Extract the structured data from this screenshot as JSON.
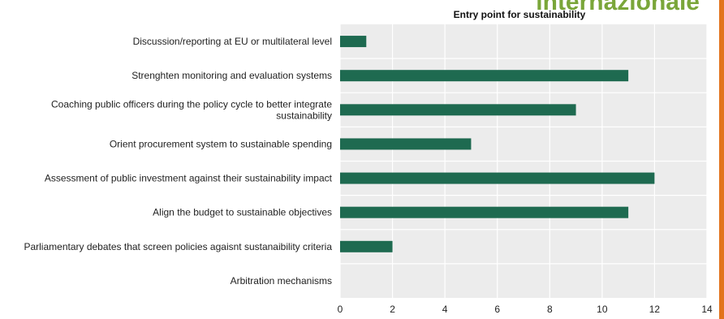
{
  "watermark_text": "internazionale",
  "colors": {
    "bar": "#1e6a50",
    "plot_bg": "#ececec",
    "grid": "#ffffff",
    "edge_accent": "#e2731c"
  },
  "chart_data": {
    "type": "bar",
    "orientation": "horizontal",
    "title": "Entry point for sustainability",
    "xlabel": "",
    "ylabel": "",
    "xlim": [
      0,
      14
    ],
    "xticks": [
      "0",
      "2",
      "4",
      "6",
      "8",
      "10",
      "12",
      "14"
    ],
    "grid": true,
    "categories": [
      [
        "Discussion/reporting at EU or multilateral level"
      ],
      [
        "Strenghten monitoring and evaluation systems"
      ],
      [
        "Coaching public officers during the policy cycle to better integrate",
        "sustainability"
      ],
      [
        "Orient procurement system to sustainable spending"
      ],
      [
        "Assessment of public investment against their sustainability impact"
      ],
      [
        "Align the budget to sustainable objectives"
      ],
      [
        "Parliamentary debates that screen policies agaisnt sustanaibility criteria"
      ],
      [
        "Arbitration mechanisms"
      ]
    ],
    "values": [
      1,
      11,
      9,
      5,
      12,
      11,
      2,
      0
    ]
  }
}
